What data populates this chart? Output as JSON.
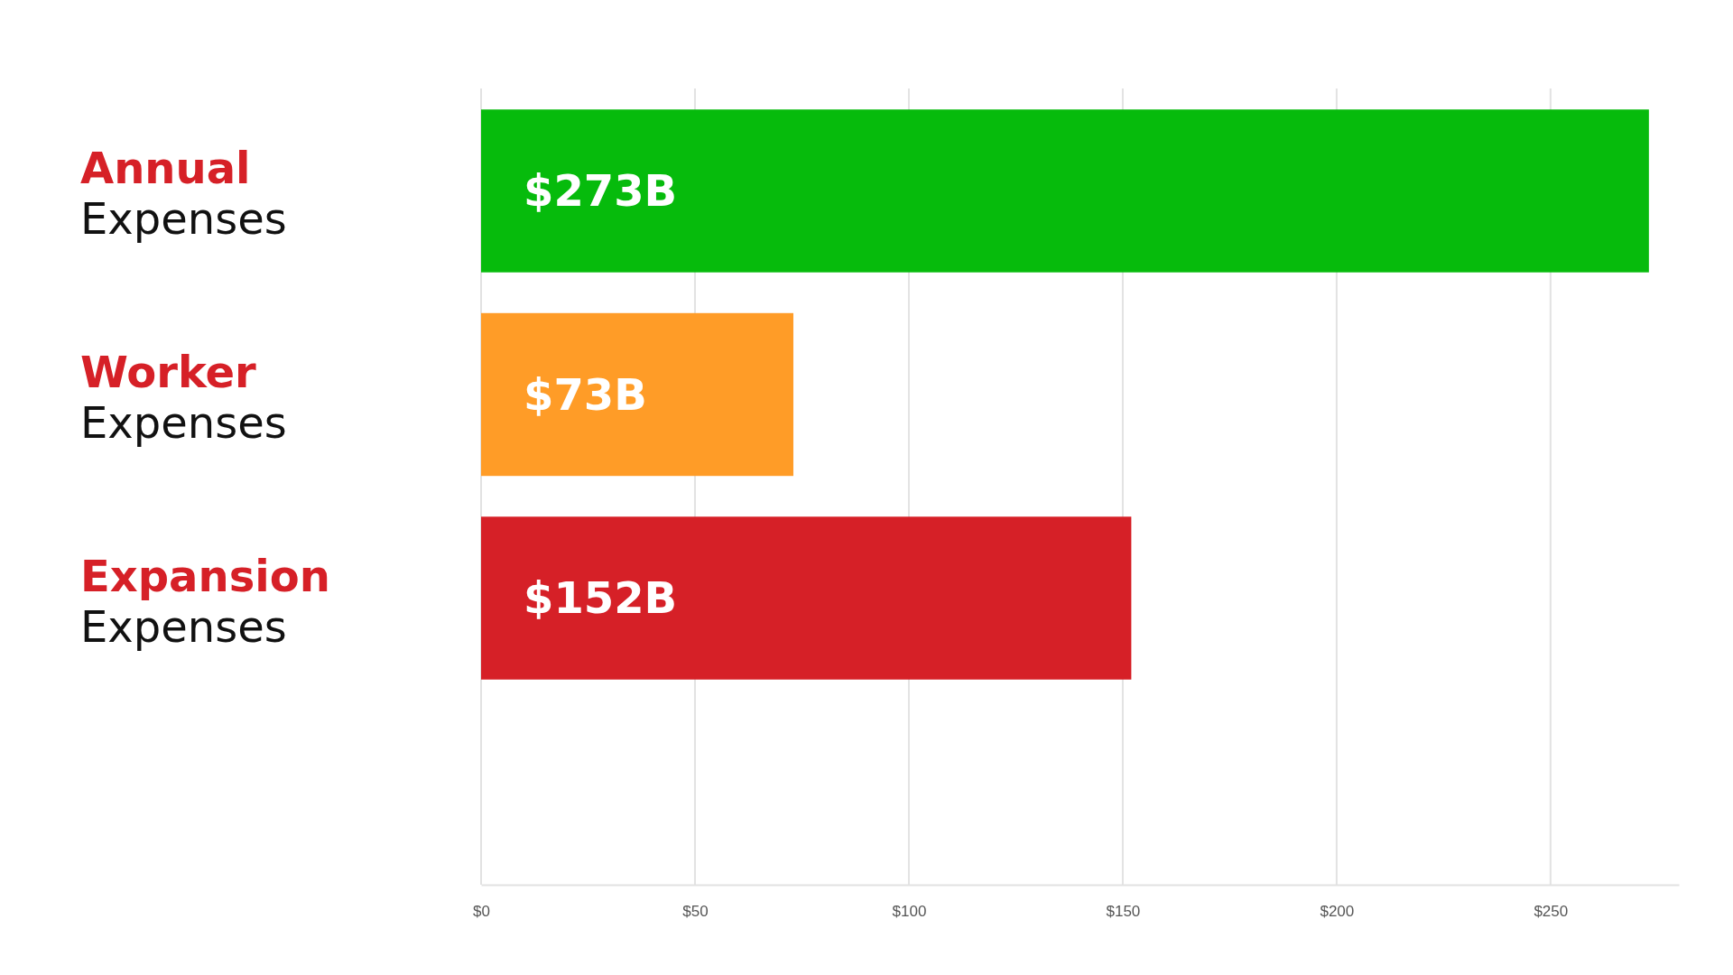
{
  "chart_data": {
    "type": "bar",
    "orientation": "horizontal",
    "categories": [
      "Annual Expenses",
      "Worker Expenses",
      "Expansion Expenses"
    ],
    "values": [
      273,
      73,
      152
    ],
    "colors": [
      "#06bb0c",
      "#ff9c27",
      "#d62027"
    ],
    "value_labels": [
      "$273B",
      "$73B",
      "$152B"
    ],
    "xlim": [
      0,
      280
    ],
    "xticks": [
      {
        "value": 0,
        "label": "$0"
      },
      {
        "value": 50,
        "label": "$50"
      },
      {
        "value": 100,
        "label": "$100"
      },
      {
        "value": 150,
        "label": "$150"
      },
      {
        "value": 200,
        "label": "$200"
      },
      {
        "value": 250,
        "label": "$250"
      }
    ],
    "grid": "x"
  }
}
